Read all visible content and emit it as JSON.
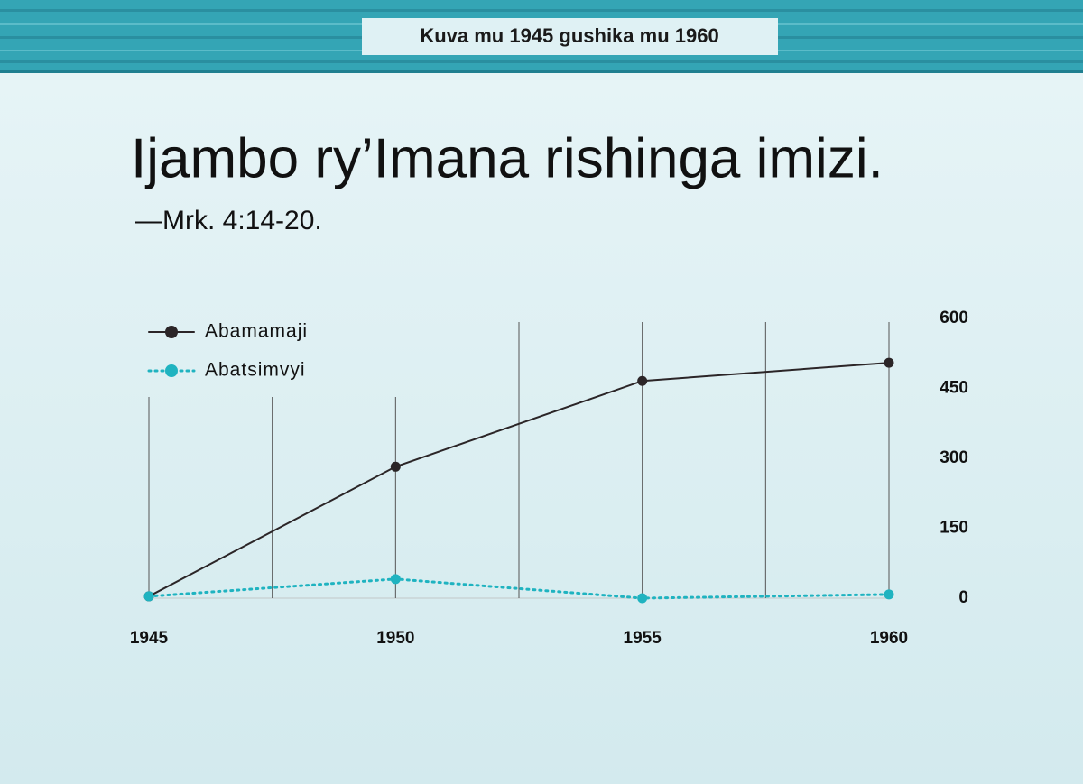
{
  "chart_data": {
    "type": "line",
    "banner": "Kuva mu 1945 gushika mu 1960",
    "title": "Ijambo ry’Imana rishinga imizi.",
    "subtitle": "—Mrk.  4:14-20.",
    "x": [
      1945,
      1950,
      1955,
      1960
    ],
    "xlim": [
      1945,
      1960
    ],
    "xticks": [
      1945,
      1950,
      1955,
      1960
    ],
    "series": [
      {
        "name": "Abamamaji",
        "color": "#2b2527",
        "style": "solid",
        "values": [
          4,
          282,
          466,
          505
        ]
      },
      {
        "name": "Abatsimvyi",
        "color": "#1fb3c0",
        "style": "dotted",
        "values": [
          4,
          41,
          0,
          8
        ]
      }
    ],
    "ylim": [
      0,
      600
    ],
    "yticks": [
      0,
      150,
      300,
      450,
      600
    ],
    "y_axis_side": "right",
    "legend": "top-left",
    "grid": true
  }
}
